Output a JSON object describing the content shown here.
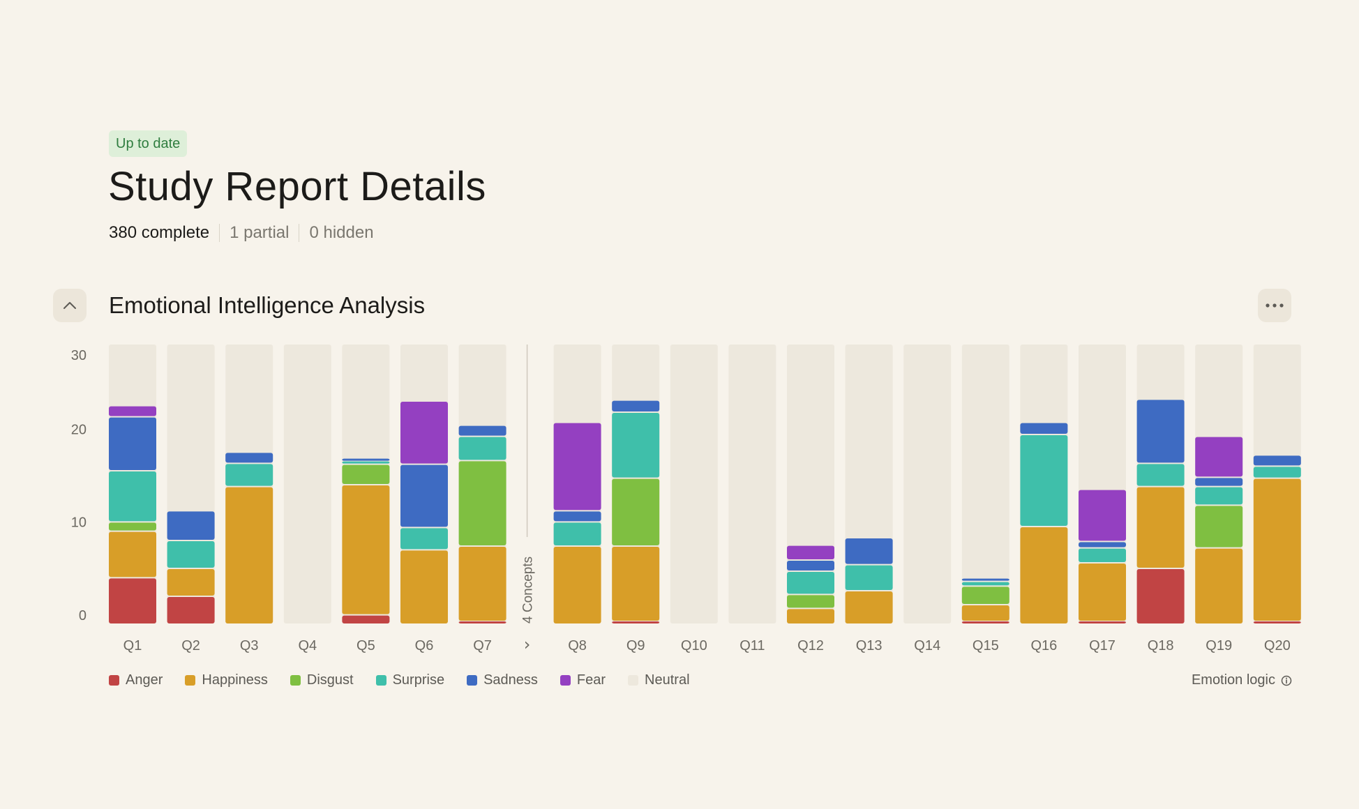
{
  "header": {
    "status_badge": "Up to date",
    "title": "Study Report Details",
    "complete": "380 complete",
    "partial": "1 partial",
    "hidden": "0 hidden"
  },
  "section": {
    "title": "Emotional Intelligence Analysis",
    "collapse_icon": "chevron-up-icon",
    "more_icon": "more-horizontal-icon"
  },
  "footer": {
    "emotion_logic": "Emotion logic",
    "info_icon": "info-icon"
  },
  "chart_data": {
    "type": "bar",
    "stacked": true,
    "ylim": [
      0,
      30
    ],
    "yticks": [
      0,
      10,
      20,
      30
    ],
    "grid": false,
    "legend_position": "bottom-left",
    "categories": [
      "Q1",
      "Q2",
      "Q3",
      "Q4",
      "Q5",
      "Q6",
      "Q7",
      "Q8",
      "Q9",
      "Q10",
      "Q11",
      "Q12",
      "Q13",
      "Q14",
      "Q15",
      "Q16",
      "Q17",
      "Q18",
      "Q19",
      "Q20"
    ],
    "divider": {
      "after_category": "Q7",
      "label": "4 Concepts",
      "arrow": "›"
    },
    "series": [
      {
        "name": "Anger",
        "color": "#c14444",
        "values": [
          5.0,
          3.0,
          0,
          0,
          1.0,
          0,
          0.3,
          0,
          0.3,
          0,
          0,
          0,
          0,
          0,
          0.3,
          0,
          0.3,
          6.0,
          0,
          0.3
        ]
      },
      {
        "name": "Happiness",
        "color": "#d89e28",
        "values": [
          5.0,
          3.0,
          14.8,
          0,
          14.0,
          8.0,
          8.1,
          8.4,
          8.1,
          0,
          0,
          1.7,
          3.6,
          0,
          1.8,
          10.5,
          6.3,
          8.8,
          8.2,
          15.4
        ]
      },
      {
        "name": "Disgust",
        "color": "#7fbf41",
        "values": [
          1.0,
          0,
          0,
          0,
          2.2,
          0,
          9.2,
          0,
          7.3,
          0,
          0,
          1.5,
          0,
          0,
          2.0,
          0,
          0,
          0,
          4.6,
          0
        ]
      },
      {
        "name": "Surprise",
        "color": "#3fbfaa",
        "values": [
          5.5,
          3.0,
          2.5,
          0,
          0.3,
          2.4,
          2.6,
          2.6,
          7.1,
          0,
          0,
          2.5,
          2.8,
          0,
          0.5,
          9.9,
          1.6,
          2.5,
          2.0,
          1.3
        ]
      },
      {
        "name": "Sadness",
        "color": "#3e6bc2",
        "values": [
          5.8,
          3.2,
          1.2,
          0,
          0.3,
          6.8,
          1.2,
          1.2,
          1.3,
          0,
          0,
          1.2,
          2.9,
          0,
          0.3,
          1.3,
          0.7,
          6.9,
          1.0,
          1.2
        ]
      },
      {
        "name": "Fear",
        "color": "#9440c1",
        "values": [
          1.2,
          0,
          0,
          0,
          0,
          6.8,
          0,
          9.5,
          0,
          0,
          0,
          1.6,
          0,
          0,
          0,
          0,
          5.6,
          0,
          4.4,
          0
        ]
      }
    ],
    "background_series": {
      "name": "Neutral",
      "color": "#ede8dd"
    }
  }
}
